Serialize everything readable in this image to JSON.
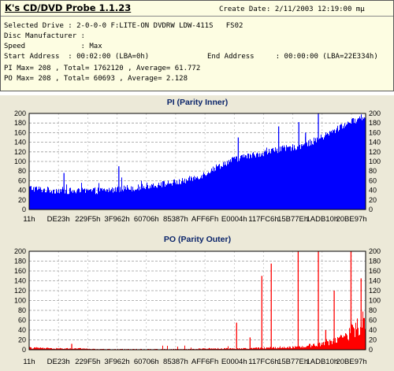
{
  "app": {
    "title": "K's CD/DVD Probe 1.1.23",
    "create_date_label": "Create Date",
    "create_date_value": ": 2/11/2003 12:19:00 mμ"
  },
  "info": {
    "selected_drive": "Selected Drive : 2-0-0-0 F:LITE-ON DVDRW LDW-411S   FS02",
    "disc_manufacturer": "Disc Manufacturer :",
    "speed": "Speed             : Max",
    "start_address": "Start Address  : 00:02:00 (LBA=0h)",
    "end_address": "End Address     : 00:00:00 (LBA=22E334h)",
    "pi_stats": "PI Max= 208 , Total= 1762120 , Average= 61.772",
    "po_stats": "PO Max= 208 , Total= 60693 , Average= 2.128"
  },
  "colors": {
    "panel_bg": "#ece9d8",
    "info_bg": "#fdfde2",
    "pi_series": "#0000ff",
    "po_series": "#ff0000",
    "title_color": "#0a246a"
  },
  "chart_data": [
    {
      "type": "bar",
      "title": "PI (Parity Inner)",
      "ylim": [
        0,
        200
      ],
      "yticks": [
        "0",
        "20",
        "40",
        "60",
        "80",
        "100",
        "120",
        "140",
        "160",
        "180",
        "200"
      ],
      "xtick_labels": [
        "11h",
        "DE23h",
        "229F5h",
        "3F962h",
        "60706h",
        "85387h",
        "AFF6Fh",
        "E0004h",
        "117FC6h",
        "15B77Eh",
        "1ADB10h",
        "20BE97h"
      ],
      "grid": true,
      "series": [
        {
          "color": "#0000ff",
          "baseline": [
            45,
            42,
            40,
            40,
            38,
            38,
            39,
            40,
            42,
            45,
            45,
            50,
            52,
            55,
            58,
            64,
            72,
            85,
            96,
            105,
            110,
            115,
            120,
            125,
            128,
            132,
            140,
            150,
            162,
            175,
            185,
            195
          ],
          "spikes": [
            {
              "pos": 0.102,
              "value": 76
            },
            {
              "pos": 0.265,
              "value": 90
            },
            {
              "pos": 0.62,
              "value": 150
            },
            {
              "pos": 0.74,
              "value": 173
            },
            {
              "pos": 0.8,
              "value": 182
            },
            {
              "pos": 0.82,
              "value": 160
            },
            {
              "pos": 0.858,
              "value": 208
            }
          ]
        }
      ]
    },
    {
      "type": "bar",
      "title": "PO (Parity Outer)",
      "ylim": [
        0,
        200
      ],
      "yticks": [
        "0",
        "20",
        "40",
        "60",
        "80",
        "100",
        "120",
        "140",
        "160",
        "180",
        "200"
      ],
      "xtick_labels": [
        "11h",
        "DE23h",
        "229F5h",
        "3F962h",
        "60706h",
        "85387h",
        "AFF6Fh",
        "E0004h",
        "117FC6h",
        "15B77Eh",
        "1ADB10h",
        "20BE97h"
      ],
      "grid": true,
      "series": [
        {
          "color": "#ff0000",
          "baseline": [
            3,
            3,
            2,
            2,
            2,
            2,
            1,
            1,
            1,
            1,
            1,
            1,
            1,
            1,
            1,
            1,
            2,
            2,
            2,
            2,
            2,
            3,
            3,
            4,
            4,
            5,
            7,
            10,
            15,
            22,
            32,
            50
          ],
          "spikes": [
            {
              "pos": 0.125,
              "value": 12
            },
            {
              "pos": 0.615,
              "value": 55
            },
            {
              "pos": 0.655,
              "value": 25
            },
            {
              "pos": 0.69,
              "value": 150
            },
            {
              "pos": 0.718,
              "value": 175
            },
            {
              "pos": 0.798,
              "value": 202
            },
            {
              "pos": 0.858,
              "value": 203
            },
            {
              "pos": 0.88,
              "value": 40
            },
            {
              "pos": 0.905,
              "value": 120
            },
            {
              "pos": 0.955,
              "value": 205
            },
            {
              "pos": 0.985,
              "value": 145
            }
          ]
        }
      ]
    }
  ]
}
